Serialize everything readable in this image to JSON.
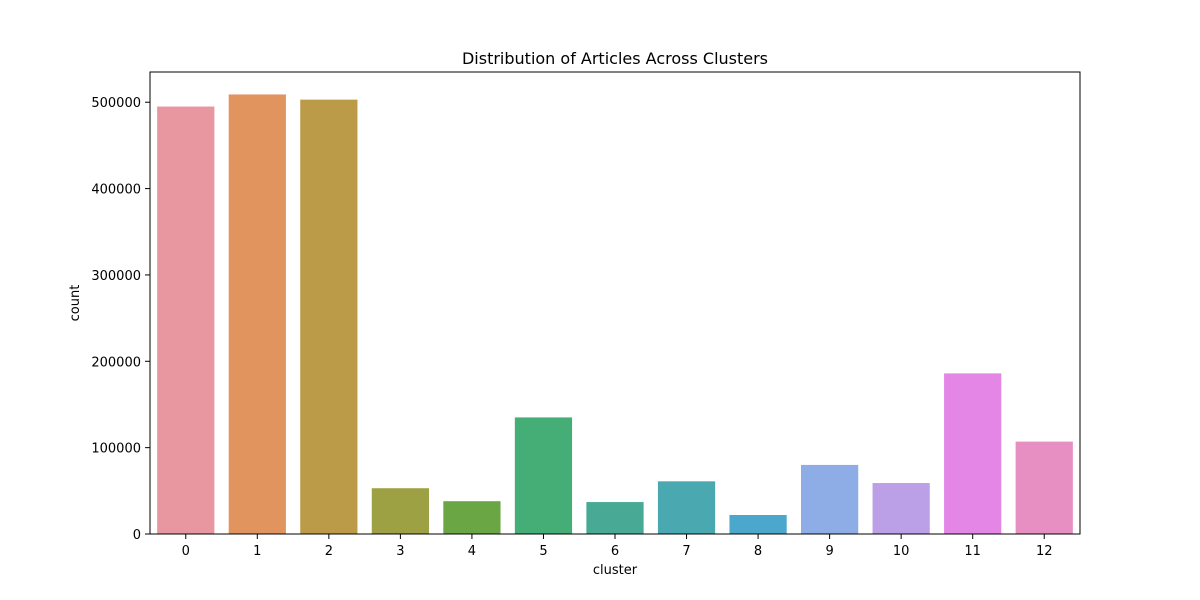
{
  "chart_data": {
    "type": "bar",
    "title": "Distribution of Articles Across Clusters",
    "xlabel": "cluster",
    "ylabel": "count",
    "categories": [
      "0",
      "1",
      "2",
      "3",
      "4",
      "5",
      "6",
      "7",
      "8",
      "9",
      "10",
      "11",
      "12"
    ],
    "values": [
      495000,
      509000,
      503000,
      53000,
      38000,
      135000,
      37000,
      61000,
      22000,
      80000,
      59000,
      186000,
      107000
    ],
    "colors": [
      "#e8969f",
      "#e2945f",
      "#bc9b48",
      "#9da143",
      "#6aa744",
      "#45ad76",
      "#48aa95",
      "#4aa9b0",
      "#4ba7cc",
      "#8eade6",
      "#bba0e8",
      "#e486e6",
      "#e78fc3"
    ],
    "ylim": [
      0,
      535000
    ],
    "yticks": [
      0,
      100000,
      200000,
      300000,
      400000,
      500000
    ],
    "ytick_labels": [
      "0",
      "100000",
      "200000",
      "300000",
      "400000",
      "500000"
    ],
    "grid": false,
    "legend": "none"
  }
}
